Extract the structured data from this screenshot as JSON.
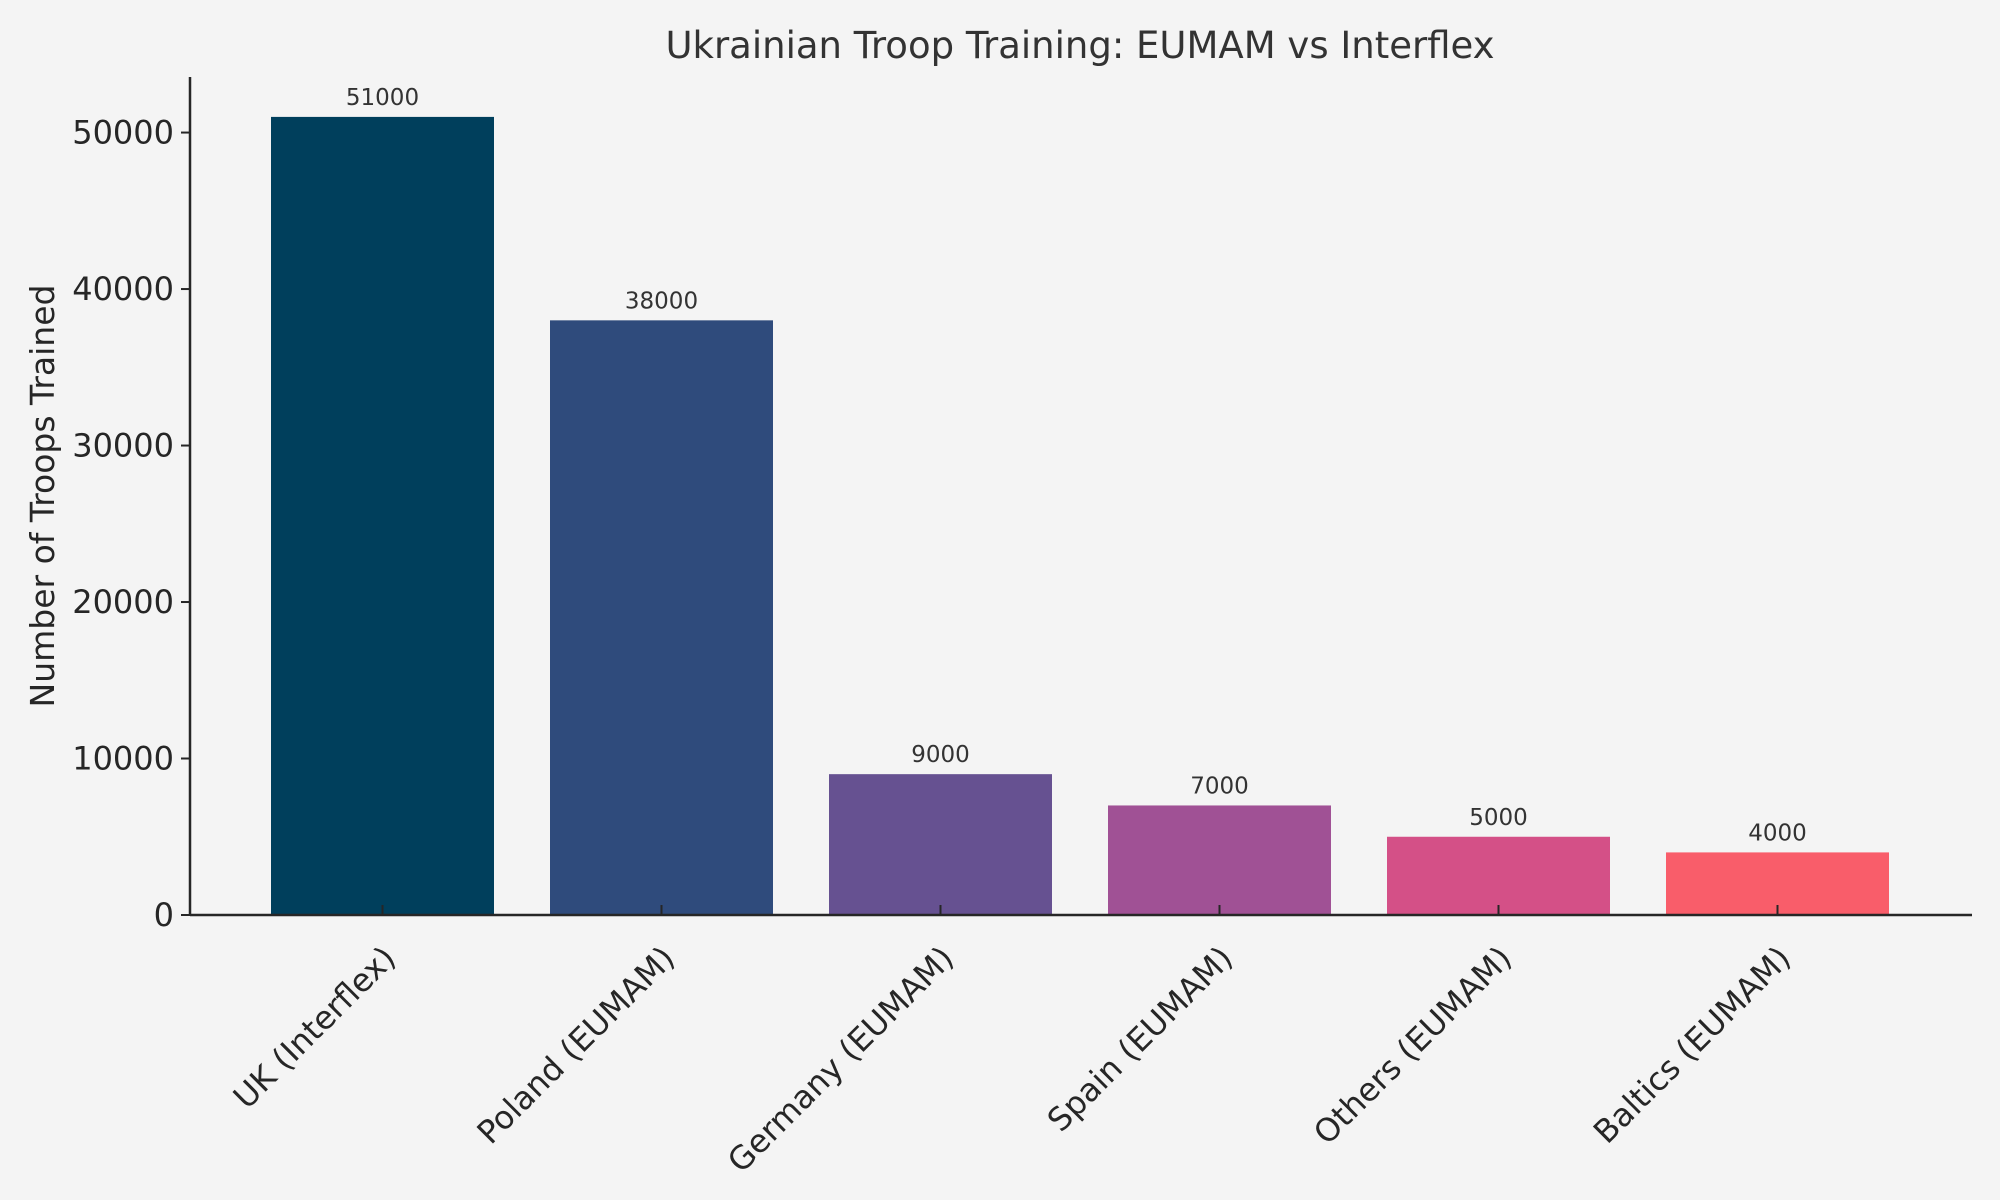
{
  "chart_data": {
    "type": "bar",
    "title": "Ukrainian Troop Training: EUMAM vs Interflex",
    "xlabel": "",
    "ylabel": "Number of Troops Trained",
    "categories": [
      "UK (Interflex)",
      "Poland (EUMAM)",
      "Germany (EUMAM)",
      "Spain (EUMAM)",
      "Others (EUMAM)",
      "Baltics (EUMAM)"
    ],
    "values": [
      51000,
      38000,
      9000,
      7000,
      5000,
      4000
    ],
    "bar_colors": [
      "#003f5c",
      "#2f4b7c",
      "#665191",
      "#a05195",
      "#d45087",
      "#f95d6a"
    ],
    "value_labels": [
      "51000",
      "38000",
      "9000",
      "7000",
      "5000",
      "4000"
    ],
    "yticks": [
      0,
      10000,
      20000,
      30000,
      40000,
      50000
    ],
    "ytick_labels": [
      "0",
      "10000",
      "20000",
      "30000",
      "40000",
      "50000"
    ],
    "ylim": [
      0,
      53550
    ],
    "grid": false,
    "legend": "none",
    "background_color": "#f4f4f4"
  }
}
